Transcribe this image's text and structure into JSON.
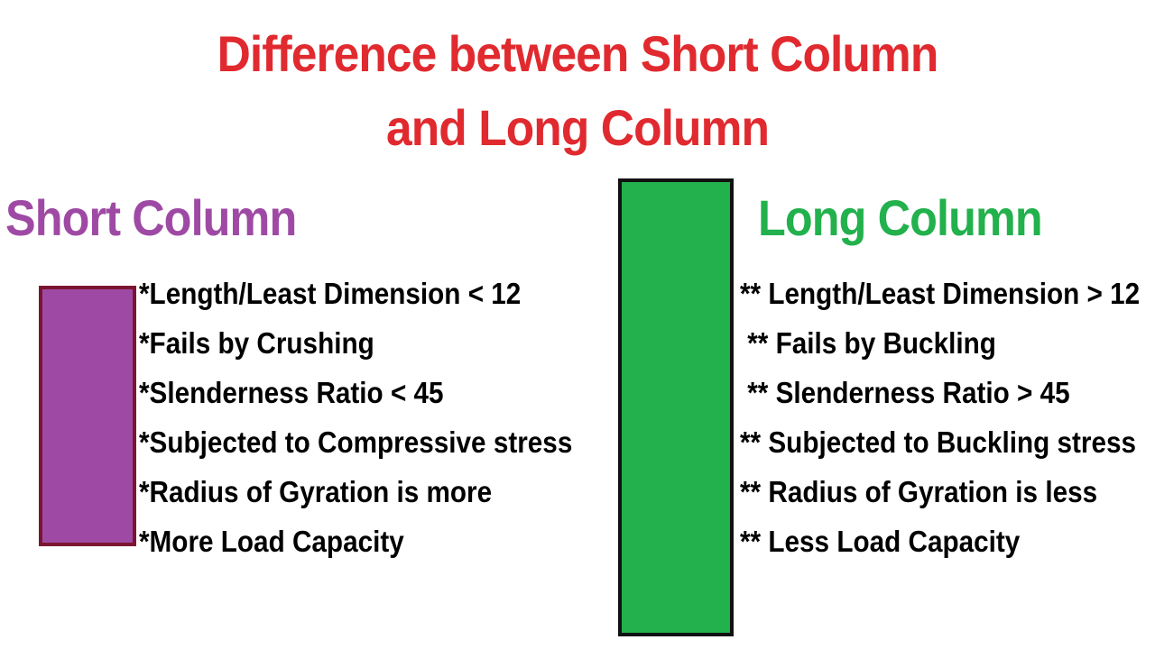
{
  "title": {
    "line1": "Difference between Short Column",
    "line2": "and Long Column",
    "color": "#e02a2f"
  },
  "short_column": {
    "heading": "Short Column",
    "heading_color": "#9e4aa4",
    "shape_fill": "#9e4aa4",
    "shape_border": "#7a1531",
    "items": [
      "*Length/Least Dimension < 12",
      "*Fails by Crushing",
      "*Slenderness Ratio < 45",
      "*Subjected to Compressive stress",
      "*Radius of Gyration is more",
      "*More Load Capacity"
    ]
  },
  "long_column": {
    "heading": "Long Column",
    "heading_color": "#22b14c",
    "shape_fill": "#22b14c",
    "shape_border": "#111111",
    "items": [
      "** Length/Least Dimension > 12",
      " ** Fails by Buckling",
      " ** Slenderness Ratio > 45",
      "** Subjected to Buckling stress",
      "** Radius of Gyration is less",
      "** Less Load Capacity"
    ]
  }
}
